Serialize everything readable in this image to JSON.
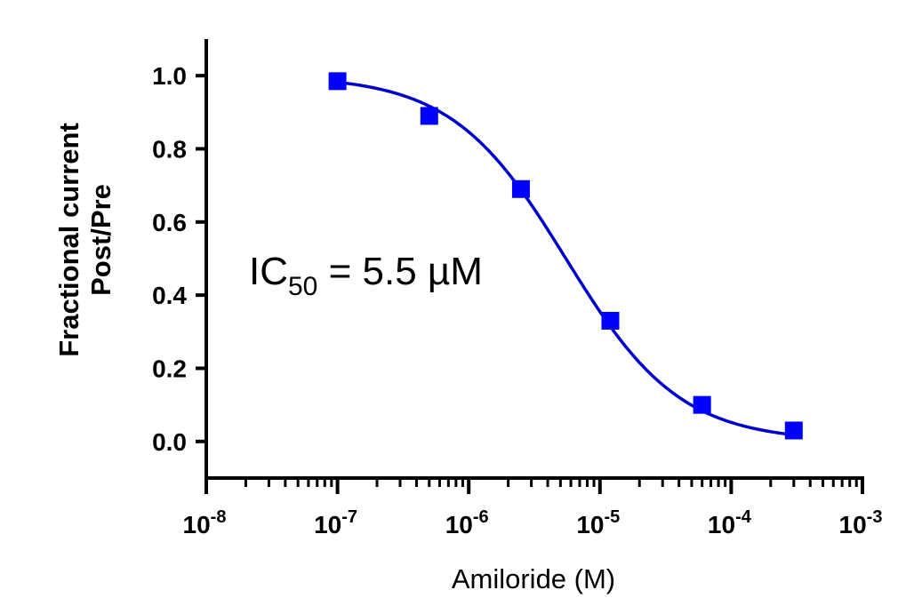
{
  "chart_data": {
    "type": "scatter",
    "title": "",
    "xlabel": "Amiloride (M)",
    "ylabel_lines": [
      "Fractional current",
      "Post/Pre"
    ],
    "x_scale": "log",
    "xlim": [
      1e-08,
      0.001
    ],
    "ylim": [
      -0.1,
      1.1
    ],
    "x_ticks": [
      {
        "base": "10",
        "exp": "-8"
      },
      {
        "base": "10",
        "exp": "-7"
      },
      {
        "base": "10",
        "exp": "-6"
      },
      {
        "base": "10",
        "exp": "-5"
      },
      {
        "base": "10",
        "exp": "-4"
      },
      {
        "base": "10",
        "exp": "-3"
      }
    ],
    "y_ticks": [
      "0.0",
      "0.2",
      "0.4",
      "0.6",
      "0.8",
      "1.0"
    ],
    "series": [
      {
        "color": "#0000ff",
        "marker": "square",
        "points": [
          {
            "x": 1e-07,
            "y": 0.985
          },
          {
            "x": 5e-07,
            "y": 0.89
          },
          {
            "x": 2.5e-06,
            "y": 0.69
          },
          {
            "x": 1.2e-05,
            "y": 0.33
          },
          {
            "x": 6e-05,
            "y": 0.1
          },
          {
            "x": 0.0003,
            "y": 0.03
          }
        ]
      }
    ],
    "fit": {
      "color": "#0000cc",
      "ic50": 5.5e-06,
      "top": 1.0,
      "bottom": 0.0,
      "hill": 1.0
    },
    "annotation": {
      "prefix": "IC",
      "subscript": "50",
      "suffix": " = 5.5 µM"
    },
    "grid": false,
    "legend": "none"
  }
}
